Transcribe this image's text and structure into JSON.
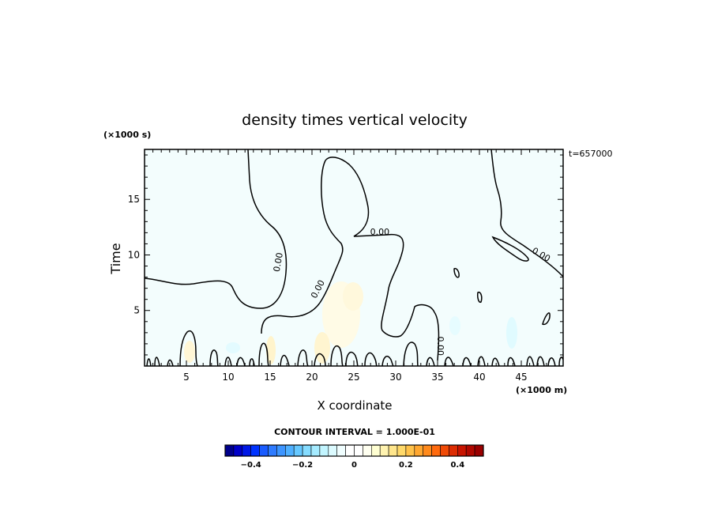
{
  "chart_data": {
    "type": "contour",
    "title": "density times vertical velocity",
    "xlabel": "X coordinate",
    "ylabel": "Time",
    "x_unit": "(×1000 m)",
    "y_unit": "(×1000 s)",
    "time_stamp": "t=657000",
    "xlim": [
      0,
      50
    ],
    "ylim": [
      0,
      19.5
    ],
    "x_ticks": [
      5,
      10,
      15,
      20,
      25,
      30,
      35,
      40,
      45
    ],
    "y_ticks": [
      5,
      10,
      15
    ],
    "x_ticks_labels": [
      "5",
      "10",
      "15",
      "20",
      "25",
      "30",
      "35",
      "40",
      "45"
    ],
    "y_ticks_labels": [
      "5",
      "10",
      "15"
    ],
    "contour_labels": [
      {
        "text": "0.00",
        "x": 16.3,
        "y": 9.3
      },
      {
        "text": "0.00",
        "x": 21.0,
        "y": 6.8
      },
      {
        "text": "0.00",
        "x": 28.1,
        "y": 11.8
      },
      {
        "text": "0.00",
        "x": 47.2,
        "y": 9.8
      },
      {
        "text": "0.00",
        "x": 35.0,
        "y": 1.8
      }
    ],
    "contour_interval_text": "CONTOUR INTERVAL = 1.000E-01",
    "colorbar": {
      "range": [
        -0.5,
        0.5
      ],
      "tick_values": [
        -0.4,
        -0.2,
        0,
        0.2,
        0.4
      ],
      "tick_labels": [
        "−0.4",
        "−0.2",
        "0",
        "0.2",
        "0.4"
      ],
      "colors": [
        "#00008b",
        "#0000c8",
        "#0018e6",
        "#0033ff",
        "#1a5cff",
        "#2e7bff",
        "#3d95ff",
        "#4fb0ff",
        "#66c8ff",
        "#85dcff",
        "#a5ebff",
        "#c2f5ff",
        "#dcfbff",
        "#f0feff",
        "#ffffff",
        "#ffffff",
        "#fffff0",
        "#ffffd2",
        "#fff3b0",
        "#ffe68c",
        "#ffd96a",
        "#ffc24a",
        "#ffa730",
        "#ff8a1c",
        "#ff6a0e",
        "#f04a06",
        "#dd2c02",
        "#c81400",
        "#b00800",
        "#9a0000"
      ]
    }
  }
}
